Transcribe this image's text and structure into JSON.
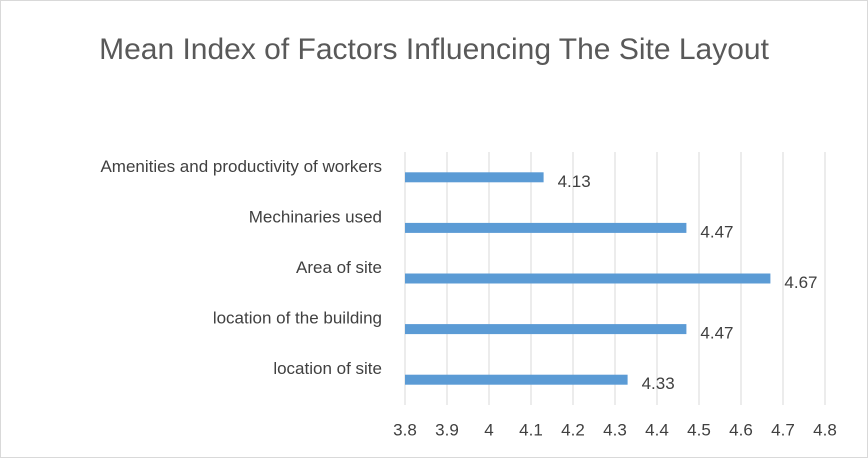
{
  "chart_data": {
    "type": "bar",
    "orientation": "horizontal",
    "title": "Mean Index of Factors Influencing The Site Layout",
    "categories": [
      "Amenities and productivity of workers",
      "Mechinaries used",
      "Area of site",
      "location of the building",
      "location of site"
    ],
    "values": [
      4.13,
      4.47,
      4.67,
      4.47,
      4.33
    ],
    "color": "#5b9bd5",
    "xlim": [
      3.8,
      4.8
    ],
    "xticks": [
      3.8,
      3.9,
      4,
      4.1,
      4.2,
      4.3,
      4.4,
      4.5,
      4.6,
      4.7,
      4.8
    ],
    "grid": true
  }
}
